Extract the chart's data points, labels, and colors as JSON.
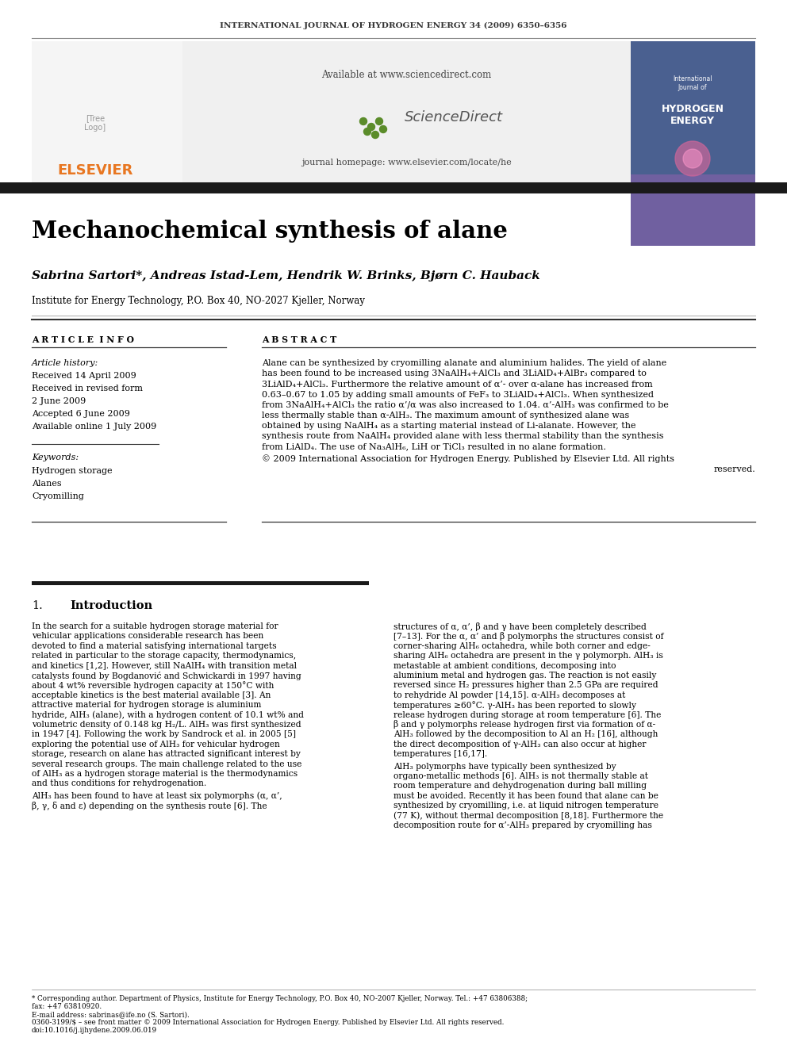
{
  "journal_header": "INTERNATIONAL JOURNAL OF HYDROGEN ENERGY 34 (2009) 6350–6356",
  "title": "Mechanochemical synthesis of alane",
  "authors": "Sabrina Sartori*, Andreas Istad-Lem, Hendrik W. Brinks, Bjørn C. Hauback",
  "affiliation": "Institute for Energy Technology, P.O. Box 40, NO-2027 Kjeller, Norway",
  "article_info_header": "A R T I C L E  I N F O",
  "abstract_header": "A B S T R A C T",
  "article_history_label": "Article history:",
  "received1": "Received 14 April 2009",
  "received2": "Received in revised form",
  "received2b": "2 June 2009",
  "accepted": "Accepted 6 June 2009",
  "available": "Available online 1 July 2009",
  "keywords_label": "Keywords:",
  "kw1": "Hydrogen storage",
  "kw2": "Alanes",
  "kw3": "Cryomilling",
  "abstract_text": "Alane can be synthesized by cryomilling alanate and aluminium halides. The yield of alane\nhas been found to be increased using 3NaAlH₄+AlCl₃ and 3LiAlD₄+AlBr₃ compared to\n3LiAlD₄+AlCl₃. Furthermore the relative amount of α’- over α-alane has increased from\n0.63–0.67 to 1.05 by adding small amounts of FeF₃ to 3LiAlD₄+AlCl₃. When synthesized\nfrom 3NaAlH₄+AlCl₃ the ratio α’/α was also increased to 1.04. α’-AlH₃ was confirmed to be\nless thermally stable than α-AlH₃. The maximum amount of synthesized alane was\nobtained by using NaAlH₄ as a starting material instead of Li-alanate. However, the\nsynthesis route from NaAlH₄ provided alane with less thermal stability than the synthesis\nfrom LiAlD₄. The use of Na₃AlH₆, LiH or TiCl₃ resulted in no alane formation.",
  "copyright_line1": "© 2009 International Association for Hydrogen Energy. Published by Elsevier Ltd. All rights",
  "copyright_line2": "reserved.",
  "intro_number": "1.",
  "intro_title": "Introduction",
  "intro_left": "In the search for a suitable hydrogen storage material for\nvehicular applications considerable research has been\ndevoted to find a material satisfying international targets\nrelated in particular to the storage capacity, thermodynamics,\nand kinetics [1,2]. However, still NaAlH₄ with transition metal\ncatalysts found by Bogdanović and Schwickardi in 1997 having\nabout 4 wt% reversible hydrogen capacity at 150°C with\nacceptable kinetics is the best material available [3]. An\nattractive material for hydrogen storage is aluminium\nhydride, AlH₃ (alane), with a hydrogen content of 10.1 wt% and\nvolumetric density of 0.148 kg H₂/L. AlH₃ was first synthesized\nin 1947 [4]. Following the work by Sandrock et al. in 2005 [5]\nexploring the potential use of AlH₃ for vehicular hydrogen\nstorage, research on alane has attracted significant interest by\nseveral research groups. The main challenge related to the use\nof AlH₃ as a hydrogen storage material is the thermodynamics\nand thus conditions for rehydrogenation.",
  "intro_left2": "AlH₃ has been found to have at least six polymorphs (α, α’,\nβ, γ, δ and ε) depending on the synthesis route [6]. The",
  "intro_right": "structures of α, α’, β and γ have been completely described\n[7–13]. For the α, α’ and β polymorphs the structures consist of\ncorner-sharing AlH₆ octahedra, while both corner and edge-\nsharing AlH₆ octahedra are present in the γ polymorph. AlH₃ is\nmetastable at ambient conditions, decomposing into\naluminium metal and hydrogen gas. The reaction is not easily\nreversed since H₂ pressures higher than 2.5 GPa are required\nto rehydride Al powder [14,15]. α-AlH₃ decomposes at\ntemperatures ≥60°C. γ-AlH₃ has been reported to slowly\nrelease hydrogen during storage at room temperature [6]. The\nβ and γ polymorphs release hydrogen first via formation of α-\nAlH₃ followed by the decomposition to Al an H₂ [16], although\nthe direct decomposition of γ-AlH₃ can also occur at higher\ntemperatures [16,17].",
  "intro_right2": "AlH₃ polymorphs have typically been synthesized by\norgano-metallic methods [6]. AlH₃ is not thermally stable at\nroom temperature and dehydrogenation during ball milling\nmust be avoided. Recently it has been found that alane can be\nsynthesized by cryomilling, i.e. at liquid nitrogen temperature\n(77 K), without thermal decomposition [8,18]. Furthermore the\ndecomposition route for α’-AlH₃ prepared by cryomilling has",
  "footnote_star1": "* Corresponding author. Department of Physics, Institute for Energy Technology, P.O. Box 40, NO-2007 Kjeller, Norway. Tel.: +47 63806388;",
  "footnote_star2": "fax: +47 63810920.",
  "footnote_email": "E-mail address: sabrinas@ife.no (S. Sartori).",
  "footnote_issn": "0360-3199/$ – see front matter © 2009 International Association for Hydrogen Energy. Published by Elsevier Ltd. All rights reserved.",
  "footnote_doi": "doi:10.1016/j.ijhydene.2009.06.019",
  "bg_color": "#ffffff",
  "text_color": "#000000",
  "dark_bar_color": "#1a1a1a",
  "elsevier_orange": "#e87722",
  "sciencedirect_green": "#5b8c2a",
  "journal_header_color": "#333333"
}
